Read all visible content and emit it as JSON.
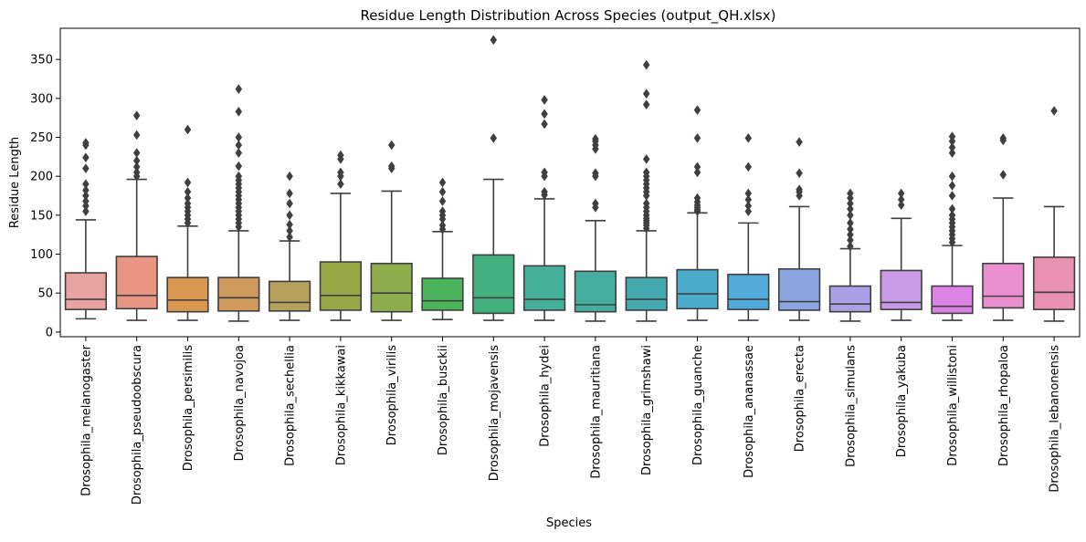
{
  "chart_data": {
    "type": "box",
    "title": "Residue Length Distribution Across Species (output_QH.xlsx)",
    "xlabel": "Species",
    "ylabel": "Residue Length",
    "ylim": [
      -6,
      390
    ],
    "yticks": [
      0,
      50,
      100,
      150,
      200,
      250,
      300,
      350
    ],
    "grid": false,
    "categories": [
      "Drosophila_melanogaster",
      "Drosophila_pseudoobscura",
      "Drosophila_persimilis",
      "Drosophila_navojoa",
      "Drosophila_sechellia",
      "Drosophila_kikkawai",
      "Drosophila_virilis",
      "Drosophila_busckii",
      "Drosophila_mojavensis",
      "Drosophila_hydei",
      "Drosophila_mauritiana",
      "Drosophila_grimshawi",
      "Drosophila_guanche",
      "Drosophila_ananassae",
      "Drosophila_erecta",
      "Drosophila_simulans",
      "Drosophila_yakuba",
      "Drosophila_willistoni",
      "Drosophila_rhopaloa",
      "Drosophila_lebanonensis"
    ],
    "colors": [
      "#e7a3a1",
      "#e99583",
      "#da9750",
      "#cf9a5b",
      "#b6a15c",
      "#98a847",
      "#8dad4e",
      "#4ab45b",
      "#45b07f",
      "#45b09a",
      "#46ae9f",
      "#43a9ae",
      "#4aacca",
      "#52aadb",
      "#8aa5e2",
      "#aba0e6",
      "#c99ae6",
      "#dd82e5",
      "#e98ecf",
      "#e891b0"
    ],
    "boxes": [
      {
        "min": 17,
        "q1": 29,
        "median": 42,
        "q3": 76,
        "max": 144,
        "outliers": [
          155,
          162,
          168,
          175,
          182,
          190,
          210,
          224,
          240,
          243
        ]
      },
      {
        "min": 15,
        "q1": 30,
        "median": 47,
        "q3": 97,
        "max": 196,
        "outliers": [
          200,
          205,
          212,
          220,
          230,
          253,
          278
        ]
      },
      {
        "min": 15,
        "q1": 26,
        "median": 41,
        "q3": 70,
        "max": 136,
        "outliers": [
          140,
          145,
          150,
          155,
          160,
          165,
          172,
          180,
          192,
          260
        ]
      },
      {
        "min": 14,
        "q1": 27,
        "median": 44,
        "q3": 70,
        "max": 130,
        "outliers": [
          135,
          140,
          145,
          150,
          155,
          160,
          165,
          170,
          175,
          180,
          185,
          190,
          195,
          200,
          213,
          230,
          240,
          250,
          283,
          312
        ]
      },
      {
        "min": 15,
        "q1": 27,
        "median": 38,
        "q3": 65,
        "max": 117,
        "outliers": [
          122,
          130,
          138,
          150,
          165,
          178,
          200
        ]
      },
      {
        "min": 15,
        "q1": 28,
        "median": 47,
        "q3": 90,
        "max": 178,
        "outliers": [
          190,
          200,
          205,
          222,
          227
        ]
      },
      {
        "min": 15,
        "q1": 26,
        "median": 50,
        "q3": 88,
        "max": 181,
        "outliers": [
          210,
          213,
          240
        ]
      },
      {
        "min": 16,
        "q1": 28,
        "median": 40,
        "q3": 69,
        "max": 129,
        "outliers": [
          132,
          137,
          145,
          150,
          155,
          168,
          180,
          192
        ]
      },
      {
        "min": 15,
        "q1": 24,
        "median": 44,
        "q3": 99,
        "max": 196,
        "outliers": [
          249,
          375
        ]
      },
      {
        "min": 15,
        "q1": 28,
        "median": 42,
        "q3": 85,
        "max": 171,
        "outliers": [
          176,
          180,
          200,
          205,
          267,
          280,
          298
        ]
      },
      {
        "min": 14,
        "q1": 26,
        "median": 35,
        "q3": 78,
        "max": 143,
        "outliers": [
          160,
          165,
          200,
          204,
          235,
          240,
          245,
          248
        ]
      },
      {
        "min": 14,
        "q1": 28,
        "median": 42,
        "q3": 70,
        "max": 130,
        "outliers": [
          133,
          137,
          140,
          143,
          146,
          150,
          155,
          160,
          165,
          175,
          180,
          185,
          190,
          195,
          200,
          205,
          222,
          292,
          306,
          343
        ]
      },
      {
        "min": 15,
        "q1": 30,
        "median": 49,
        "q3": 80,
        "max": 153,
        "outliers": [
          155,
          157,
          160,
          163,
          167,
          172,
          205,
          212,
          249,
          285
        ]
      },
      {
        "min": 15,
        "q1": 29,
        "median": 42,
        "q3": 74,
        "max": 140,
        "outliers": [
          155,
          162,
          170,
          178,
          212,
          249
        ]
      },
      {
        "min": 15,
        "q1": 28,
        "median": 39,
        "q3": 81,
        "max": 161,
        "outliers": [
          175,
          180,
          183,
          204,
          244
        ]
      },
      {
        "min": 14,
        "q1": 26,
        "median": 36,
        "q3": 59,
        "max": 107,
        "outliers": [
          110,
          118,
          125,
          132,
          140,
          150,
          158,
          165,
          172,
          178
        ]
      },
      {
        "min": 15,
        "q1": 29,
        "median": 38,
        "q3": 79,
        "max": 146,
        "outliers": [
          163,
          170,
          178
        ]
      },
      {
        "min": 15,
        "q1": 24,
        "median": 33,
        "q3": 59,
        "max": 111,
        "outliers": [
          115,
          120,
          125,
          130,
          135,
          140,
          145,
          150,
          158,
          175,
          188,
          200,
          230,
          237,
          245,
          251
        ]
      },
      {
        "min": 15,
        "q1": 31,
        "median": 46,
        "q3": 88,
        "max": 172,
        "outliers": [
          202,
          246,
          249
        ]
      },
      {
        "min": 14,
        "q1": 29,
        "median": 51,
        "q3": 96,
        "max": 161,
        "outliers": [
          284
        ]
      }
    ]
  }
}
